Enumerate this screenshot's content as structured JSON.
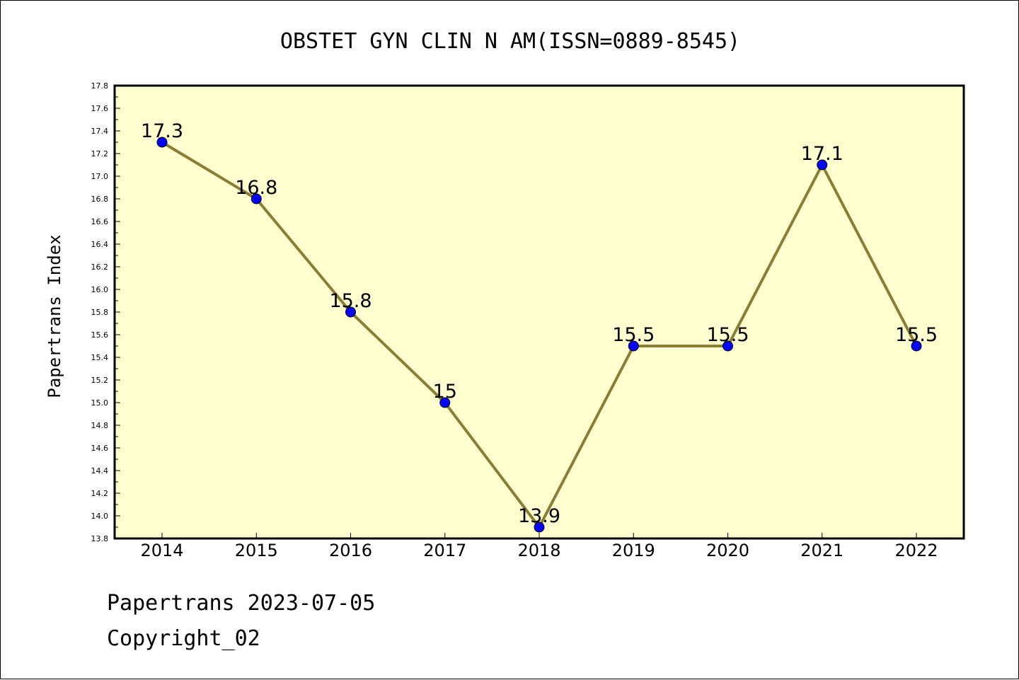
{
  "chart_data": {
    "type": "line",
    "title": "OBSTET GYN CLIN N AM(ISSN=0889-8545)",
    "xlabel": "",
    "ylabel": "Papertrans Index",
    "categories": [
      "2014",
      "2015",
      "2016",
      "2017",
      "2018",
      "2019",
      "2020",
      "2021",
      "2022"
    ],
    "values": [
      17.3,
      16.8,
      15.8,
      15.0,
      13.9,
      15.5,
      15.5,
      17.1,
      15.5
    ],
    "data_labels": [
      "17.3",
      "16.8",
      "15.8",
      "15",
      "13.9",
      "15.5",
      "15.5",
      "17.1",
      "15.5"
    ],
    "ylim": [
      13.8,
      17.8
    ],
    "yticks": [
      "13.8",
      "14.0",
      "14.2",
      "14.4",
      "14.6",
      "14.8",
      "15.0",
      "15.2",
      "15.4",
      "15.6",
      "15.8",
      "16.0",
      "16.2",
      "16.4",
      "16.6",
      "16.8",
      "17.0",
      "17.2",
      "17.4",
      "17.6",
      "17.8"
    ],
    "grid": false,
    "colors": {
      "plot_background": "#ffffd0",
      "line": "#8b7d35",
      "marker": "#0000ff"
    }
  },
  "footer": {
    "line1": "Papertrans 2023-07-05",
    "line2": "Copyright_02"
  }
}
